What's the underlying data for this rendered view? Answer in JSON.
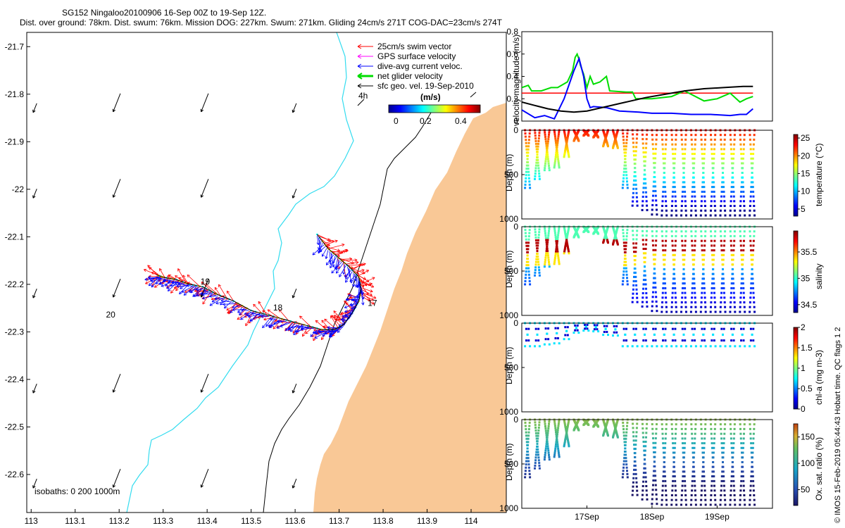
{
  "title_line1": "SG152 Ningaloo20100906 16-Sep 00Z to 19-Sep 12Z.",
  "title_line2": "Dist. over ground: 78km. Dist. swum: 76km. Mission DOG: 227km. Swum: 271km. Gliding 24cm/s 271T COG-DAC=23cm/s 274T",
  "colors": {
    "land": "#f9c896",
    "isobath_200": "#33dcef",
    "isobath_1000": "#000000",
    "swim": "#ff0000",
    "gps": "#ff00ff",
    "dac": "#0000ff",
    "net": "#00dd00",
    "geo": "#000000"
  },
  "chart_data": [
    {
      "type": "map",
      "name": "glider track map",
      "xlim": [
        112.99,
        114.08
      ],
      "ylim": [
        -22.68,
        -21.67
      ],
      "xticks": [
        113,
        113.1,
        113.2,
        113.3,
        113.4,
        113.5,
        113.6,
        113.7,
        113.8,
        113.9,
        114
      ],
      "xtick_labels": [
        "113",
        "113.1",
        "113.2",
        "113.3",
        "113.4",
        "113.5",
        "113.6",
        "113.7",
        "113.8",
        "113.9",
        "114"
      ],
      "yticks": [
        -21.7,
        -21.8,
        -21.9,
        -22,
        -22.1,
        -22.2,
        -22.3,
        -22.4,
        -22.5,
        -22.6
      ],
      "ytick_labels": [
        "-21.7",
        "-21.8",
        "-21.9",
        "-22",
        "-22.1",
        "-22.2",
        "-22.3",
        "-22.4",
        "-22.5",
        "-22.6"
      ],
      "legend": [
        {
          "label": "25cm/s swim vector",
          "color": "#ff0000"
        },
        {
          "label": "GPS surface velocity",
          "color": "#ff00ff"
        },
        {
          "label": "dive-avg current veloc.",
          "color": "#0000ff"
        },
        {
          "label": "net glider velocity",
          "color": "#00dd00"
        },
        {
          "label": "sfc geo. vel. 19-Sep-2010",
          "color": "#000000"
        }
      ],
      "scale_label": "4h",
      "colorbar": {
        "title": "(m/s)",
        "ticks": [
          0,
          0.2,
          0.4
        ],
        "tick_labels": [
          "0",
          "0.2",
          "0.4"
        ],
        "range": [
          0,
          0.5
        ]
      },
      "isobath_label": "isobaths: 0   200  1000m",
      "day_labels": [
        {
          "text": "17",
          "lon": 113.765,
          "lat": -22.245
        },
        {
          "text": "18",
          "lon": 113.55,
          "lat": -22.255
        },
        {
          "text": "19",
          "lon": 113.385,
          "lat": -22.2
        },
        {
          "text": "20",
          "lon": 113.17,
          "lat": -22.27
        }
      ],
      "track": [
        [
          113.65,
          -22.095
        ],
        [
          113.675,
          -22.125
        ],
        [
          113.7,
          -22.145
        ],
        [
          113.725,
          -22.165
        ],
        [
          113.745,
          -22.185
        ],
        [
          113.75,
          -22.21
        ],
        [
          113.745,
          -22.235
        ],
        [
          113.73,
          -22.26
        ],
        [
          113.71,
          -22.285
        ],
        [
          113.69,
          -22.295
        ],
        [
          113.66,
          -22.295
        ],
        [
          113.62,
          -22.285
        ],
        [
          113.58,
          -22.275
        ],
        [
          113.54,
          -22.265
        ],
        [
          113.5,
          -22.255
        ],
        [
          113.46,
          -22.235
        ],
        [
          113.42,
          -22.22
        ],
        [
          113.39,
          -22.205
        ],
        [
          113.36,
          -22.2
        ],
        [
          113.33,
          -22.19
        ],
        [
          113.3,
          -22.185
        ],
        [
          113.285,
          -22.18
        ]
      ],
      "geo_vectors_grid_lon": [
        113,
        113.19,
        113.39,
        113.59
      ],
      "geo_vectors_grid_lat": [
        -21.84,
        -22.02,
        -22.23,
        -22.43,
        -22.63
      ]
    },
    {
      "type": "line",
      "name": "velocity panel",
      "ylabel": "velocity magnitude (m/s)",
      "ylim": [
        0,
        0.8
      ],
      "yticks": [
        0,
        0.2,
        0.4,
        0.6,
        0.8
      ],
      "ytick_labels": [
        "0",
        "0.2",
        "0.4",
        "0.6",
        "0.8"
      ],
      "xlim": [
        16.0,
        19.85
      ],
      "series": [
        {
          "name": "swim speed",
          "color": "#ff0000",
          "x": [
            16.0,
            19.55
          ],
          "y": [
            0.25,
            0.25
          ]
        },
        {
          "name": "net glider velocity",
          "color": "#00dd00",
          "x": [
            16.0,
            16.1,
            16.15,
            16.3,
            16.45,
            16.55,
            16.7,
            16.78,
            16.82,
            16.85,
            16.88,
            16.9,
            16.95,
            17.0,
            17.05,
            17.1,
            17.2,
            17.3,
            17.35,
            17.6,
            17.7,
            17.75,
            18.0,
            18.3,
            18.5,
            18.8,
            19.0,
            19.2,
            19.35,
            19.45,
            19.55
          ],
          "y": [
            0.3,
            0.32,
            0.27,
            0.27,
            0.3,
            0.3,
            0.35,
            0.45,
            0.57,
            0.6,
            0.55,
            0.5,
            0.42,
            0.3,
            0.4,
            0.33,
            0.35,
            0.4,
            0.27,
            0.26,
            0.26,
            0.2,
            0.2,
            0.22,
            0.27,
            0.18,
            0.2,
            0.25,
            0.17,
            0.2,
            0.22
          ]
        },
        {
          "name": "dive-avg current",
          "color": "#0000ff",
          "x": [
            16.0,
            16.2,
            16.35,
            16.5,
            16.65,
            16.8,
            16.88,
            16.95,
            17.0,
            17.05,
            17.1,
            17.3,
            17.5,
            17.8,
            18.0,
            18.3,
            18.6,
            18.9,
            19.2,
            19.35,
            19.45,
            19.55
          ],
          "y": [
            0.1,
            0.03,
            0.05,
            0.02,
            0.2,
            0.45,
            0.56,
            0.4,
            0.2,
            0.12,
            0.13,
            0.12,
            0.09,
            0.08,
            0.07,
            0.07,
            0.06,
            0.06,
            0.05,
            0.06,
            0.06,
            0.11
          ]
        },
        {
          "name": "sfc geo vel",
          "color": "#000000",
          "x": [
            16.0,
            16.2,
            16.4,
            16.6,
            16.8,
            17.0,
            17.3,
            17.6,
            17.9,
            18.2,
            18.5,
            18.8,
            19.1,
            19.4,
            19.55
          ],
          "y": [
            0.17,
            0.14,
            0.11,
            0.09,
            0.08,
            0.09,
            0.13,
            0.17,
            0.21,
            0.24,
            0.27,
            0.29,
            0.3,
            0.31,
            0.31
          ]
        }
      ]
    },
    {
      "type": "scatter",
      "name": "temperature section",
      "ylabel": "Depth (m)",
      "clabel": "temperature (°C)",
      "ylim": [
        0,
        1000
      ],
      "yticks": [
        0,
        500,
        1000
      ],
      "ytick_labels": [
        "0",
        "500",
        "1000"
      ],
      "clim": [
        3,
        26
      ],
      "cticks": [
        5,
        10,
        15,
        20,
        25
      ],
      "ctick_labels": [
        "5",
        "10",
        "15",
        "20",
        "25"
      ]
    },
    {
      "type": "scatter",
      "name": "salinity section",
      "ylabel": "Depth (m)",
      "clabel": "salinity",
      "ylim": [
        0,
        1000
      ],
      "yticks": [
        0,
        500,
        1000
      ],
      "ytick_labels": [
        "0",
        "500",
        "1000"
      ],
      "clim": [
        34.35,
        35.9
      ],
      "cticks": [
        34.5,
        35,
        35.5
      ],
      "ctick_labels": [
        "34.5",
        "35",
        "35.5"
      ]
    },
    {
      "type": "scatter",
      "name": "chlorophyll section",
      "ylabel": "Depth (m)",
      "clabel": "chl-a (mg m-3)",
      "ylim": [
        0,
        1000
      ],
      "yticks": [
        0,
        500,
        1000
      ],
      "ytick_labels": [
        "0",
        "500",
        "1000"
      ],
      "clim": [
        0,
        2
      ],
      "cticks": [
        0,
        0.5,
        1,
        1.5,
        2
      ],
      "ctick_labels": [
        "0",
        "0.5",
        "1",
        "1.5",
        "2"
      ]
    },
    {
      "type": "scatter",
      "name": "oxygen section",
      "ylabel": "Depth (m)",
      "clabel": "Ox. sat. ratio (%)",
      "ylim": [
        0,
        1000
      ],
      "yticks": [
        0,
        500,
        1000
      ],
      "ytick_labels": [
        "0",
        "500",
        "1000"
      ],
      "clim": [
        20,
        175
      ],
      "cticks": [
        50,
        100,
        150
      ],
      "ctick_labels": [
        "50",
        "100",
        "150"
      ],
      "xticks": [
        17,
        18,
        19
      ],
      "xtick_labels": [
        "17Sep",
        "18Sep",
        "19Sep"
      ]
    }
  ],
  "dives": {
    "times": [
      16.05,
      16.2,
      16.35,
      16.5,
      16.65,
      16.8,
      16.95,
      17.1,
      17.25,
      17.4,
      17.55,
      17.7,
      17.85,
      18.0,
      18.15,
      18.3,
      18.45,
      18.6,
      18.75,
      18.9,
      19.05,
      19.2,
      19.35,
      19.5
    ],
    "max_depth": [
      650,
      550,
      450,
      420,
      300,
      120,
      60,
      80,
      180,
      200,
      650,
      850,
      900,
      950,
      960,
      960,
      960,
      960,
      960,
      960,
      960,
      960,
      960,
      960
    ]
  },
  "copyright": "© IMOS 15-Feb-2019 05:44:43 Hobart time. QC flags 1  2"
}
